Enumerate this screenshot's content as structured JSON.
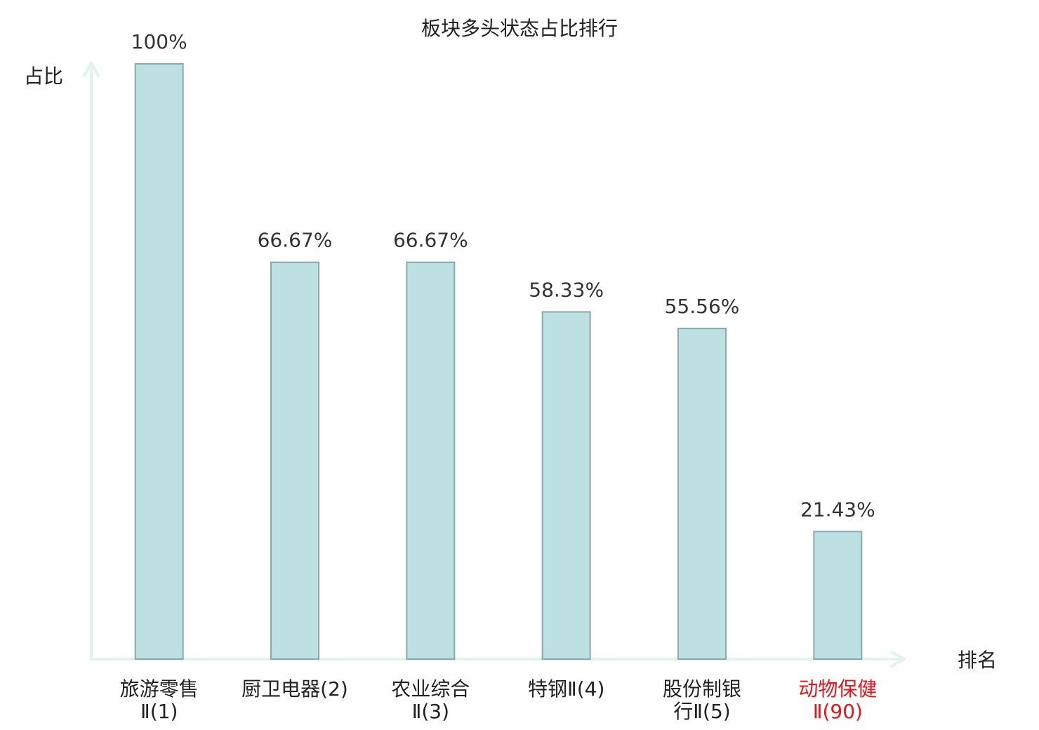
{
  "chart_data": {
    "type": "bar",
    "title": "板块多头状态占比排行",
    "y_label": "占比",
    "x_label": "排名",
    "categories": [
      [
        "旅游零售",
        "Ⅱ(1)"
      ],
      [
        "厨卫电器(2)"
      ],
      [
        "农业综合",
        "Ⅱ(3)"
      ],
      [
        "特钢Ⅱ(4)"
      ],
      [
        "股份制银",
        "行Ⅱ(5)"
      ],
      [
        "动物保健",
        "Ⅱ(90)"
      ]
    ],
    "label_colors": [
      "#222222",
      "#222222",
      "#222222",
      "#222222",
      "#222222",
      "#e8141b"
    ],
    "values": [
      100,
      66.67,
      66.67,
      58.33,
      55.56,
      21.43
    ],
    "value_labels": [
      "100%",
      "66.67%",
      "66.67%",
      "58.33%",
      "55.56%",
      "21.43%"
    ],
    "color": "#bde0e3",
    "edge_color": "#8aa9ab",
    "axis_color": "#e0f3ef",
    "ylim": [
      0,
      100
    ]
  }
}
